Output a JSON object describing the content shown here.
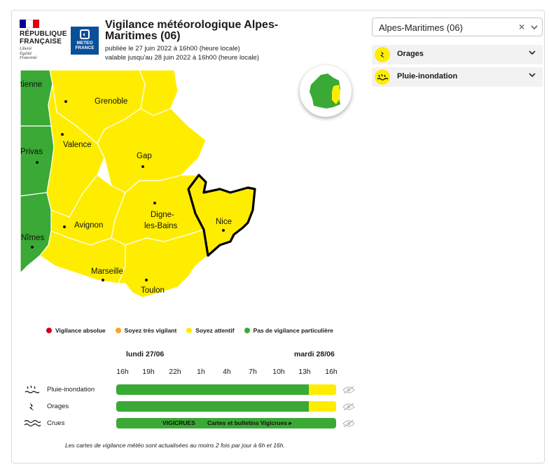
{
  "header": {
    "rf": {
      "line1": "RÉPUBLIQUE",
      "line2": "FRANÇAISE",
      "motto1": "Liberté",
      "motto2": "Égalité",
      "motto3": "Fraternité"
    },
    "mf": {
      "line1": "METEO",
      "line2": "FRANCE"
    },
    "title": "Vigilance météorologique Alpes-Maritimes  (06)",
    "published": "publiée le 27 juin 2022 à 16h00 (heure locale)",
    "valid": "valable jusqu'au 28 juin 2022 à 16h00 (heure locale)"
  },
  "department_select": {
    "value": "Alpes-Maritimes  (06)",
    "clear": "×",
    "chevron": "⌄"
  },
  "accordions": [
    {
      "label": "Orages",
      "icon": "lightning-icon"
    },
    {
      "label": "Pluie-inondation",
      "icon": "rain-flood-icon"
    }
  ],
  "map": {
    "cities": {
      "etienne": "tienne",
      "grenoble": "Grenoble",
      "valence": "Valence",
      "privas": "Privas",
      "gap": "Gap",
      "avignon": "Avignon",
      "digne1": "Digne-",
      "digne2": "les-Bains",
      "nimes": "Nîmes",
      "nice": "Nice",
      "marseille": "Marseille",
      "toulon": "Toulon"
    },
    "colors": {
      "green": "#3aa935",
      "yellow": "#ffed00",
      "orange": "#f6a623",
      "red": "#d0021b"
    }
  },
  "legend": [
    {
      "label": "Vigilance absolue",
      "color": "#d0021b"
    },
    {
      "label": "Soyez très vigilant",
      "color": "#f6a623"
    },
    {
      "label": "Soyez attentif",
      "color": "#ffed00"
    },
    {
      "label": "Pas de vigilance particulière",
      "color": "#3aa935"
    }
  ],
  "timeline": {
    "day1": "lundi 27/06",
    "day2": "mardi 28/06",
    "hours": [
      "16h",
      "19h",
      "22h",
      "1h",
      "4h",
      "7h",
      "10h",
      "13h",
      "16h"
    ],
    "rows": [
      {
        "label": "Pluie-inondation",
        "icon": "rain-flood-icon",
        "green_fraction": 0.877,
        "yellow_fraction": 0.123
      },
      {
        "label": "Orages",
        "icon": "lightning-icon",
        "green_fraction": 0.877,
        "yellow_fraction": 0.123
      },
      {
        "label": "Crues",
        "icon": "waves-icon",
        "vigicrues": "VIGICRUES",
        "vigicrues_link": "Cartes et bulletins Vigicrues ▸"
      }
    ]
  },
  "note": "Les cartes de vigilance météo sont actualisées au moins 2 fois par jour à 6h et 16h."
}
